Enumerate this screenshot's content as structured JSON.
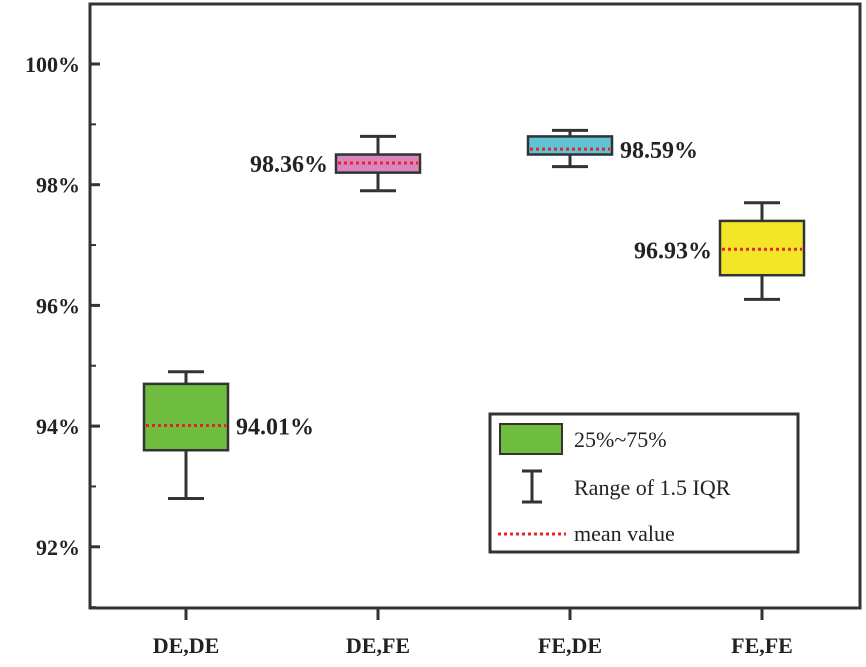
{
  "chart_data": {
    "type": "box",
    "categories": [
      "DE,DE",
      "DE,FE",
      "FE,DE",
      "FE,FE"
    ],
    "boxes": [
      {
        "whisker_low": 92.8,
        "q1": 93.6,
        "q3": 94.7,
        "whisker_high": 94.9,
        "mean": 94.01,
        "mean_label": "94.01%",
        "color": "#6fbd3f",
        "label_side": "right"
      },
      {
        "whisker_low": 97.9,
        "q1": 98.2,
        "q3": 98.5,
        "whisker_high": 98.8,
        "mean": 98.36,
        "mean_label": "98.36%",
        "color": "#d986bf",
        "label_side": "left"
      },
      {
        "whisker_low": 98.3,
        "q1": 98.5,
        "q3": 98.8,
        "whisker_high": 98.9,
        "mean": 98.59,
        "mean_label": "98.59%",
        "color": "#5ec3d4",
        "label_side": "right"
      },
      {
        "whisker_low": 96.1,
        "q1": 96.5,
        "q3": 97.4,
        "whisker_high": 97.7,
        "mean": 96.93,
        "mean_label": "96.93%",
        "color": "#f2e627",
        "label_side": "left"
      }
    ],
    "ylim": [
      91,
      101
    ],
    "yticks": [
      92,
      94,
      96,
      98,
      100
    ],
    "ytick_labels": [
      "92%",
      "94%",
      "96%",
      "98%",
      "100%"
    ],
    "mean_line_color": "#e8242a",
    "legend": {
      "position": "bottom-right",
      "entries": [
        "25%~75%",
        "Range of 1.5 IQR",
        "mean value"
      ],
      "box_color": "#6fbd3f"
    }
  }
}
